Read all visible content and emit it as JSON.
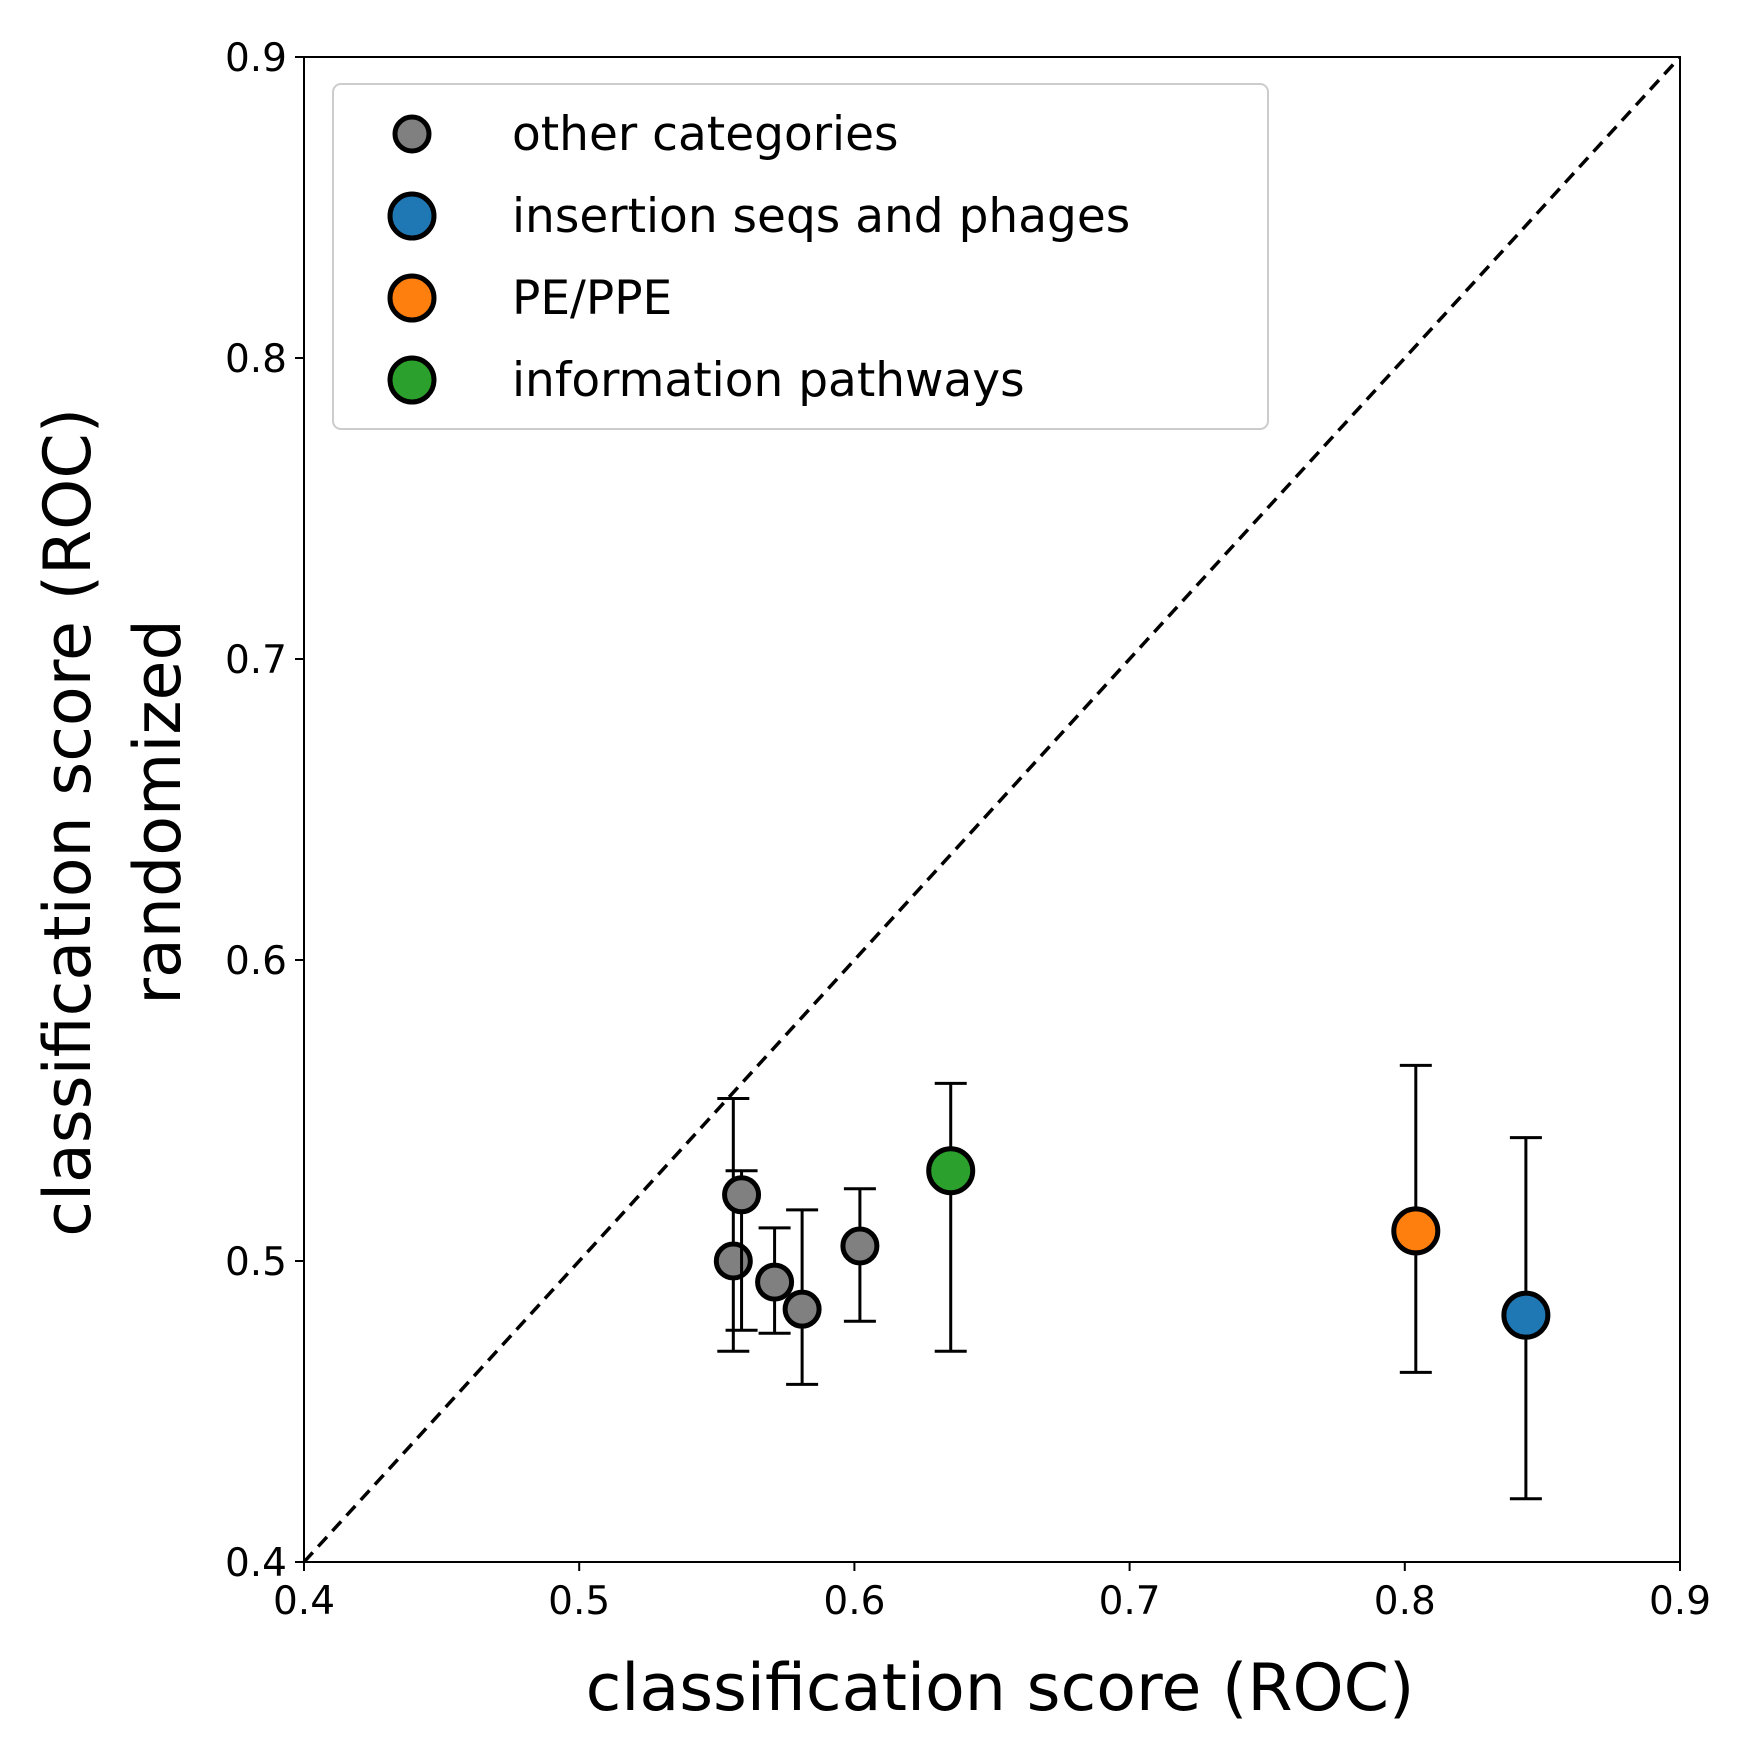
{
  "chart_data": {
    "type": "scatter",
    "xlabel": "classification score (ROC)",
    "ylabel_lines": [
      "classification score (ROC)",
      "randomized"
    ],
    "xlim": [
      0.4,
      0.9
    ],
    "ylim": [
      0.4,
      0.9
    ],
    "xticks": [
      "0.4",
      "0.5",
      "0.6",
      "0.7",
      "0.8",
      "0.9"
    ],
    "yticks": [
      "0.4",
      "0.5",
      "0.6",
      "0.7",
      "0.8",
      "0.9"
    ],
    "diagonal": {
      "style": "dashed",
      "from": [
        0.4,
        0.4
      ],
      "to": [
        0.9,
        0.9
      ]
    },
    "grid": false,
    "legend_position": "top-left",
    "series": [
      {
        "name": "other categories",
        "color": "#808080",
        "marker": "small-circle",
        "points": [
          {
            "x": 0.556,
            "y": 0.5,
            "err_low": 0.47,
            "err_high": 0.554
          },
          {
            "x": 0.559,
            "y": 0.522,
            "err_low": 0.477,
            "err_high": 0.53
          },
          {
            "x": 0.571,
            "y": 0.493,
            "err_low": 0.476,
            "err_high": 0.511
          },
          {
            "x": 0.581,
            "y": 0.484,
            "err_low": 0.459,
            "err_high": 0.517
          },
          {
            "x": 0.602,
            "y": 0.505,
            "err_low": 0.48,
            "err_high": 0.524
          }
        ]
      },
      {
        "name": "insertion seqs and phages",
        "color": "#1f77b4",
        "marker": "large-circle",
        "points": [
          {
            "x": 0.844,
            "y": 0.482,
            "err_low": 0.421,
            "err_high": 0.541
          }
        ]
      },
      {
        "name": "PE/PPE",
        "color": "#ff7f0e",
        "marker": "large-circle",
        "points": [
          {
            "x": 0.804,
            "y": 0.51,
            "err_low": 0.463,
            "err_high": 0.565
          }
        ]
      },
      {
        "name": "information pathways",
        "color": "#2ca02c",
        "marker": "large-circle",
        "points": [
          {
            "x": 0.635,
            "y": 0.53,
            "err_low": 0.47,
            "err_high": 0.559
          }
        ]
      }
    ]
  }
}
